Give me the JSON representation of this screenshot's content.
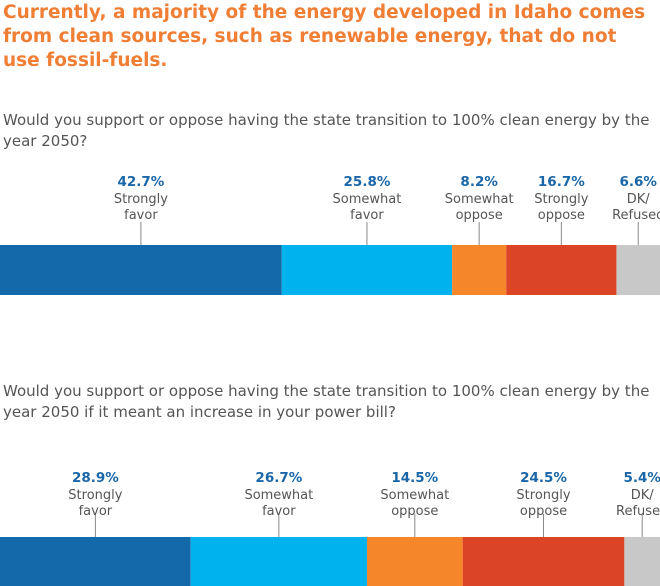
{
  "headline": "Currently, a majority of the energy developed in Idaho comes from clean sources, such as renewable energy, that do not use fossil-fuels.",
  "chart_data": [
    {
      "type": "bar",
      "orientation": "horizontal-stacked",
      "question": "Would you support or oppose having the state transition to 100% clean energy by the year 2050?",
      "categories": [
        "Strongly favor",
        "Somewhat favor",
        "Somewhat oppose",
        "Strongly oppose",
        "DK/ Refused"
      ],
      "values": [
        42.7,
        25.8,
        8.2,
        16.7,
        6.6
      ],
      "labels": [
        "42.7%",
        "25.8%",
        "8.2%",
        "16.7%",
        "6.6%"
      ],
      "colors": [
        "#1369a9",
        "#00b2ed",
        "#f6862a",
        "#dc4426",
        "#c8c8c8"
      ],
      "xlim": [
        0,
        100
      ]
    },
    {
      "type": "bar",
      "orientation": "horizontal-stacked",
      "question": "Would you support or oppose having the state transition to 100% clean energy by the year 2050 if it meant an increase in your power bill?",
      "categories": [
        "Strongly favor",
        "Somewhat favor",
        "Somewhat oppose",
        "Strongly oppose",
        "DK/ Refused"
      ],
      "values": [
        28.9,
        26.7,
        14.5,
        24.5,
        5.4
      ],
      "labels": [
        "28.9%",
        "26.7%",
        "14.5%",
        "24.5%",
        "5.4%"
      ],
      "colors": [
        "#1369a9",
        "#00b2ed",
        "#f6862a",
        "#dc4426",
        "#c8c8c8"
      ],
      "xlim": [
        0,
        100
      ]
    }
  ]
}
